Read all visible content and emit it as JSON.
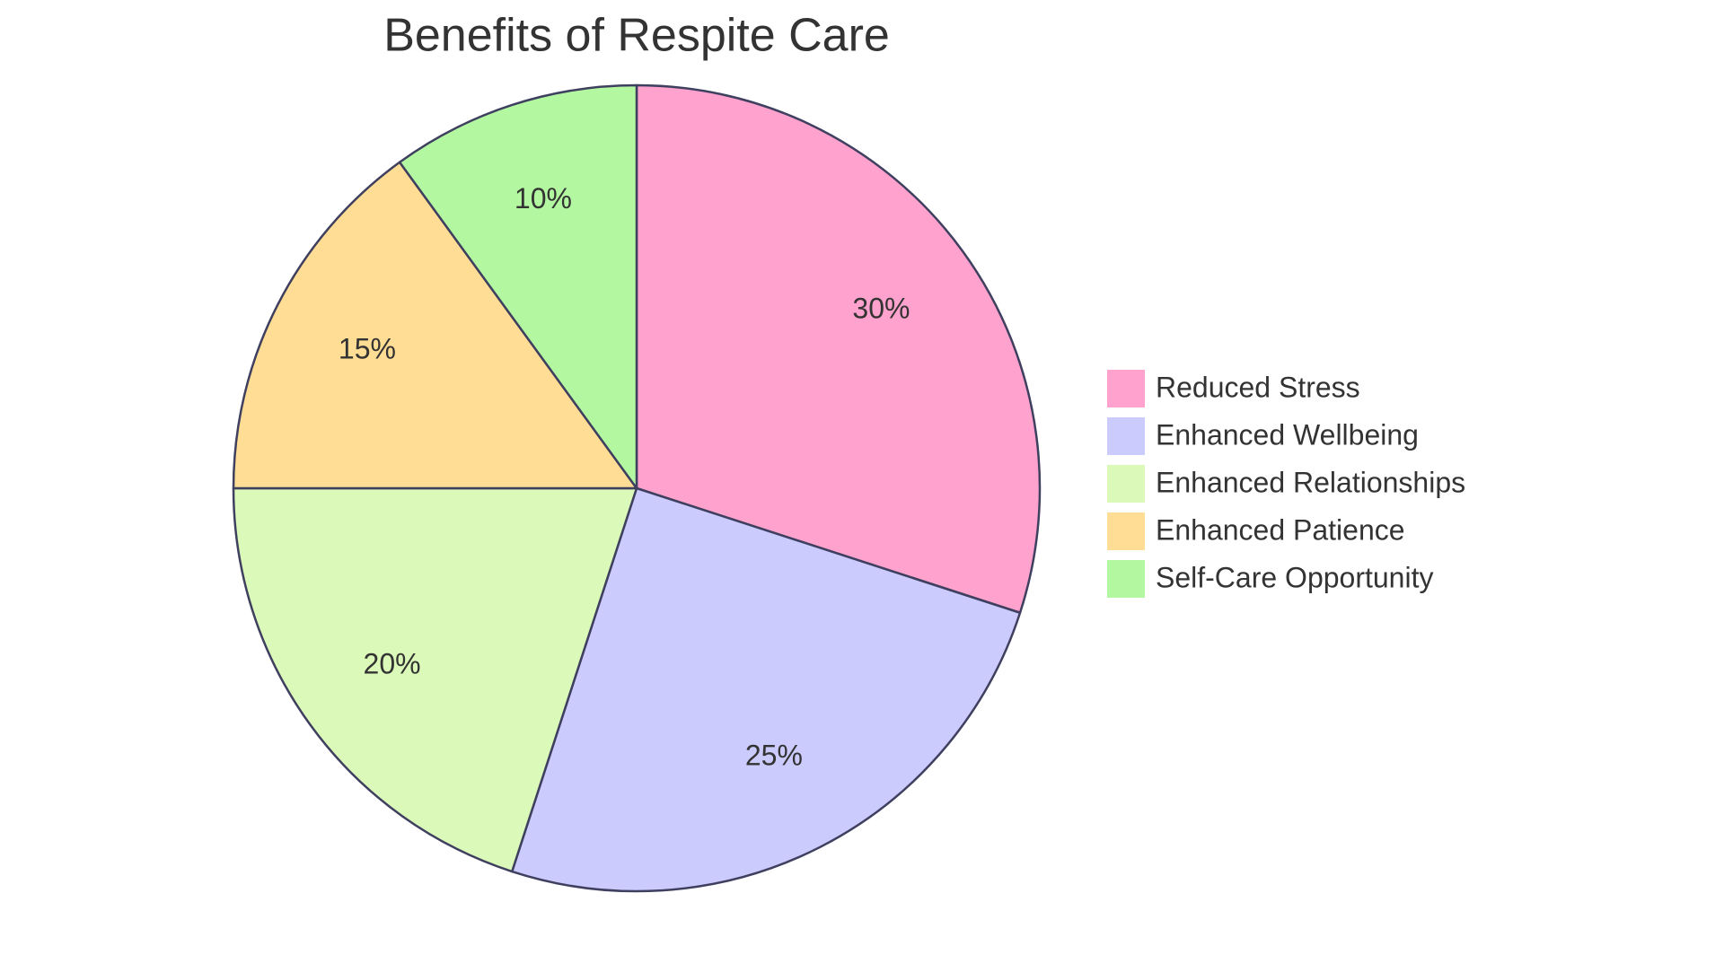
{
  "chart_data": {
    "type": "pie",
    "title": "Benefits of Respite Care",
    "categories": [
      "Reduced Stress",
      "Enhanced Wellbeing",
      "Enhanced Relationships",
      "Enhanced Patience",
      "Self-Care Opportunity"
    ],
    "values": [
      30,
      25,
      20,
      15,
      10
    ],
    "value_labels": [
      "30%",
      "25%",
      "20%",
      "15%",
      "10%"
    ],
    "colors": [
      "#ffa3ce",
      "#cbcbfe",
      "#dbfab9",
      "#ffdd94",
      "#b3f8a1"
    ],
    "legend": "right"
  }
}
